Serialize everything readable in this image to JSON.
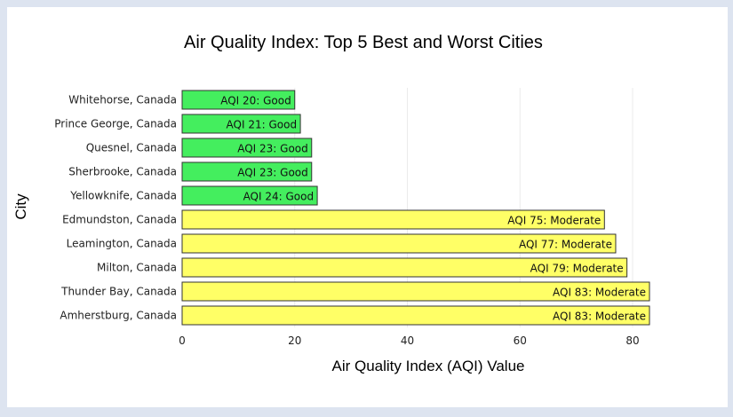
{
  "chart_data": {
    "type": "bar",
    "orientation": "horizontal",
    "title": "Air Quality Index: Top 5 Best and Worst Cities",
    "xlabel": "Air Quality Index (AQI) Value",
    "ylabel": "City",
    "xlim": [
      0,
      83
    ],
    "xticks": [
      0,
      20,
      40,
      60,
      80
    ],
    "grid": true,
    "categories": [
      "Whitehorse, Canada",
      "Prince George, Canada",
      "Quesnel, Canada",
      "Sherbrooke, Canada",
      "Yellowknife, Canada",
      "Edmundston, Canada",
      "Leamington, Canada",
      "Milton, Canada",
      "Thunder Bay, Canada",
      "Amherstburg, Canada"
    ],
    "values": [
      20,
      21,
      23,
      23,
      24,
      75,
      77,
      79,
      83,
      83
    ],
    "bar_labels": [
      "AQI 20: Good",
      "AQI 21: Good",
      "AQI 23: Good",
      "AQI 23: Good",
      "AQI 24: Good",
      "AQI 75: Moderate",
      "AQI 77: Moderate",
      "AQI 79: Moderate",
      "AQI 83: Moderate",
      "AQI 83: Moderate"
    ],
    "categories_aqi": [
      "Good",
      "Good",
      "Good",
      "Good",
      "Good",
      "Moderate",
      "Moderate",
      "Moderate",
      "Moderate",
      "Moderate"
    ],
    "colors": {
      "Good": "#44ee5e",
      "Moderate": "#ffff66"
    }
  }
}
